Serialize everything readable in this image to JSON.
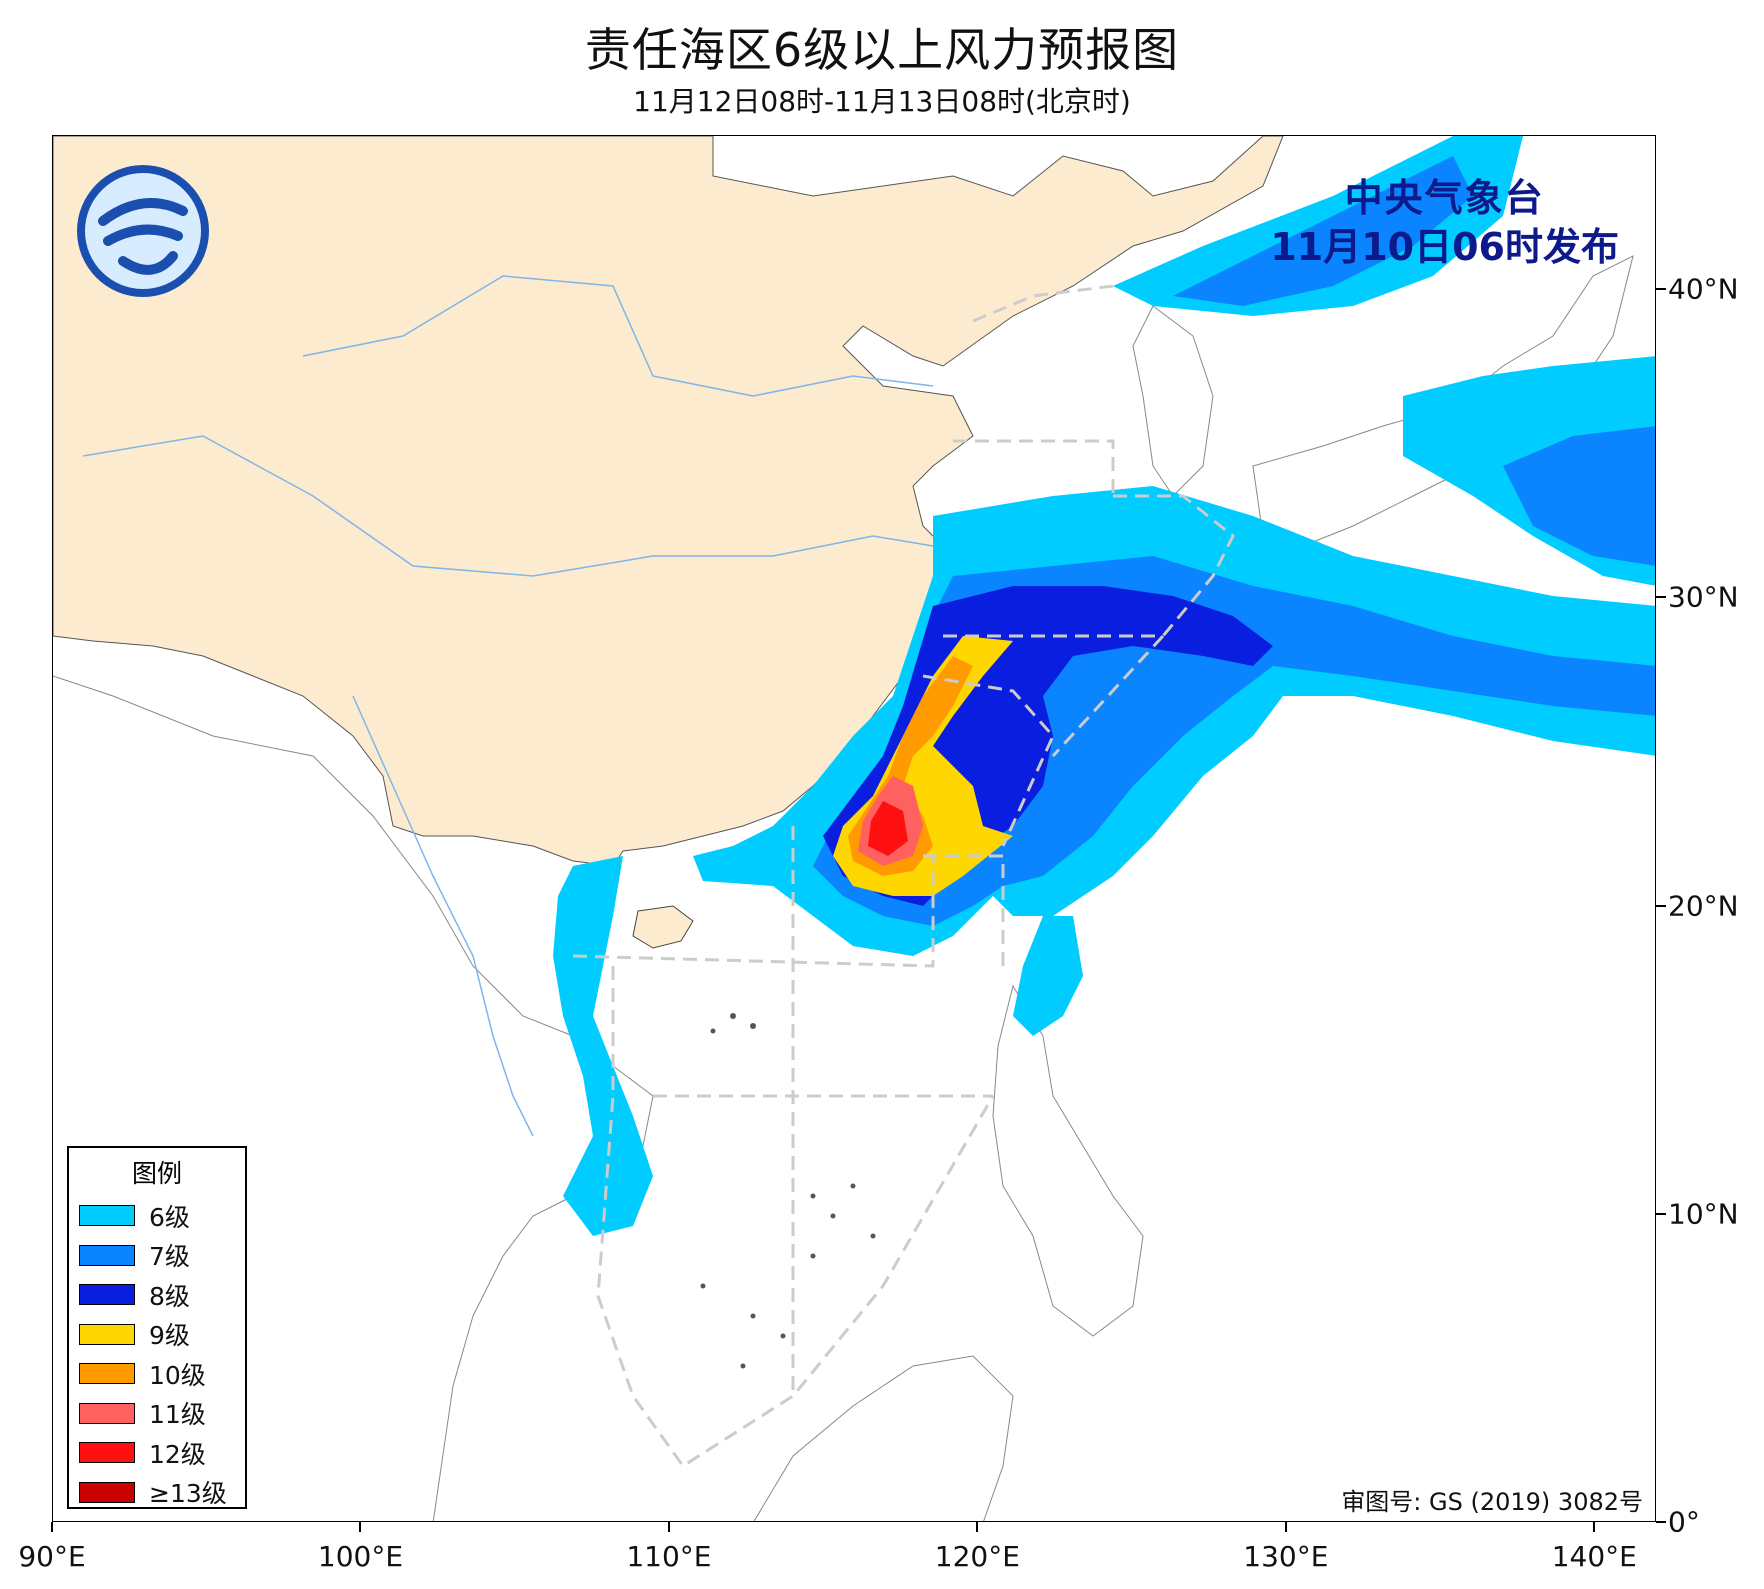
{
  "header": {
    "title": "责任海区6级以上风力预报图",
    "subtitle": "11月12日08时-11月13日08时(北京时)"
  },
  "agency": {
    "name": "中央气象台",
    "issued": "11月10日06时发布"
  },
  "approval": "审图号: GS (2019) 3082号",
  "logo_icon": "cma-logo-icon",
  "axes": {
    "x_ticks": [
      "90°E",
      "100°E",
      "110°E",
      "120°E",
      "130°E",
      "140°E"
    ],
    "y_ticks": [
      "0°",
      "10°N",
      "20°N",
      "30°N",
      "40°N"
    ],
    "lon_range": [
      90,
      142
    ],
    "lat_range": [
      0,
      45
    ]
  },
  "legend": {
    "title": "图例",
    "items": [
      {
        "label": "6级",
        "color": "#00ccff"
      },
      {
        "label": "7级",
        "color": "#0a84ff"
      },
      {
        "label": "8级",
        "color": "#0a1ee0"
      },
      {
        "label": "9级",
        "color": "#ffd700"
      },
      {
        "label": "10级",
        "color": "#ff9a00"
      },
      {
        "label": "11级",
        "color": "#ff6060"
      },
      {
        "label": "12级",
        "color": "#ff1010"
      },
      {
        "label": "≥13级",
        "color": "#c80000"
      }
    ]
  },
  "colors": {
    "china_land": "#fdebd0",
    "sea": "#ffffff",
    "river": "#7fb5ea",
    "responsibility_zone_line": "#cccccc",
    "title_agency": "#0c1a8c"
  }
}
